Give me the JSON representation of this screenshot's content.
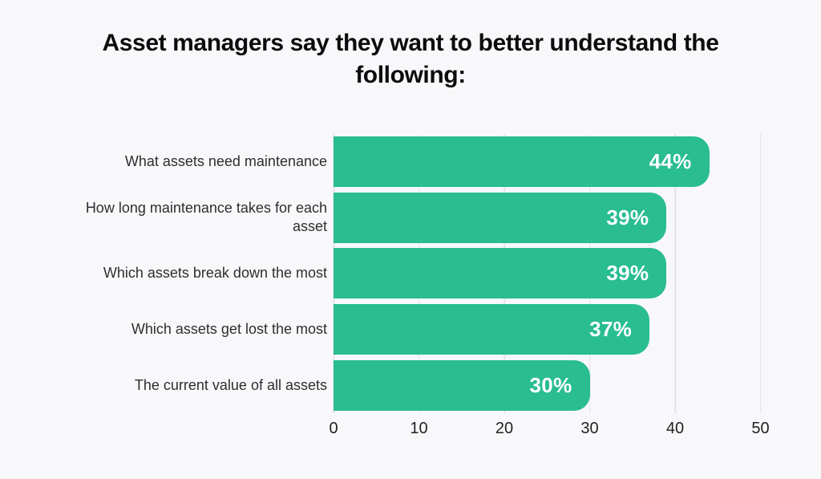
{
  "title": {
    "line1": "Asset managers say they want to better understand the",
    "line2": "following:"
  },
  "chart_data": {
    "type": "bar",
    "orientation": "horizontal",
    "title": "Asset managers say they want to better understand the following:",
    "categories": [
      "What assets need maintenance",
      "How long maintenance takes for each asset",
      "Which assets break down the most",
      "Which assets get lost the most",
      "The current value of all assets"
    ],
    "values": [
      44,
      39,
      39,
      37,
      30
    ],
    "value_labels": [
      "44%",
      "39%",
      "39%",
      "37%",
      "30%"
    ],
    "xlabel": "",
    "ylabel": "",
    "xlim": [
      0,
      50
    ],
    "x_ticks": [
      0,
      10,
      20,
      30,
      40,
      50
    ],
    "grid": "vertical-lines-on",
    "legend": "none",
    "bar_color": "#29bd90",
    "value_label_color": "#ffffff",
    "background_color": "#f8f8fa",
    "gridline_color": "#e3e3e6"
  }
}
